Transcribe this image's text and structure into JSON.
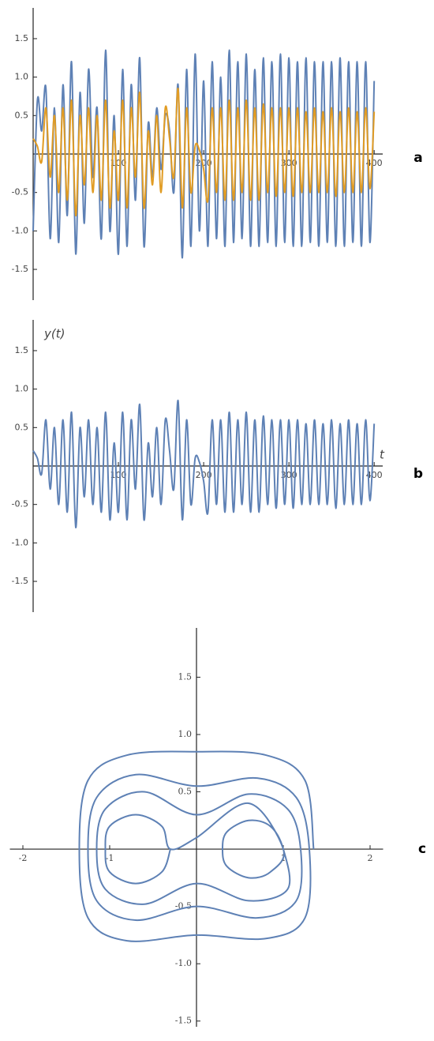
{
  "chart_data": [
    {
      "type": "line",
      "label": "a",
      "x": [
        0,
        5,
        10,
        15,
        20,
        25,
        30,
        35,
        40,
        45,
        50,
        55,
        60,
        65,
        70,
        75,
        80,
        85,
        90,
        95,
        100,
        105,
        110,
        115,
        120,
        125,
        130,
        135,
        140,
        145,
        150,
        155,
        160,
        165,
        170,
        175,
        180,
        185,
        190,
        195,
        200,
        205,
        210,
        215,
        220,
        225,
        230,
        235,
        240,
        245,
        250,
        255,
        260,
        265,
        270,
        275,
        280,
        285,
        290,
        295,
        300,
        305,
        310,
        315,
        320,
        325,
        330,
        335,
        340,
        345,
        350,
        355,
        360,
        365,
        370,
        375,
        380,
        385,
        390,
        395,
        400
      ],
      "series": [
        {
          "color": "#5e81b5",
          "values": [
            -1.0,
            0.7,
            0.3,
            0.85,
            -1.1,
            0.6,
            -1.15,
            0.9,
            -0.8,
            1.2,
            -1.3,
            0.8,
            -0.9,
            1.1,
            -0.3,
            0.6,
            -1.1,
            1.35,
            -1.0,
            0.5,
            -1.3,
            1.1,
            -1.2,
            0.9,
            -0.6,
            1.25,
            -1.2,
            0.4,
            -0.3,
            0.6,
            -0.2,
            0.5,
            0.3,
            -0.5,
            0.9,
            -1.35,
            1.1,
            -1.2,
            1.3,
            -1.0,
            0.95,
            -1.2,
            1.2,
            -1.1,
            1.0,
            -1.2,
            1.35,
            -1.15,
            1.2,
            -1.1,
            1.3,
            -1.2,
            1.1,
            -1.2,
            1.25,
            -1.15,
            1.2,
            -1.2,
            1.3,
            -1.15,
            1.25,
            -1.2,
            1.2,
            -1.2,
            1.25,
            -1.15,
            1.2,
            -1.2,
            1.2,
            -1.15,
            1.2,
            -1.2,
            1.25,
            -1.2,
            1.2,
            -1.15,
            1.2,
            -1.2,
            1.2,
            -1.15,
            0.95
          ]
        },
        {
          "color": "#e19c24",
          "values": [
            0.2,
            0.1,
            -0.1,
            0.6,
            -0.3,
            0.5,
            -0.5,
            0.6,
            -0.6,
            0.7,
            -0.8,
            0.5,
            -0.4,
            0.6,
            -0.5,
            0.5,
            -0.6,
            0.7,
            -0.7,
            0.3,
            -0.6,
            0.7,
            -0.7,
            0.6,
            -0.3,
            0.8,
            -0.7,
            0.3,
            -0.4,
            0.5,
            -0.5,
            0.6,
            0.2,
            -0.3,
            0.85,
            -0.7,
            0.6,
            -0.5,
            0.1,
            0.05,
            -0.2,
            -0.6,
            0.6,
            -0.5,
            0.6,
            -0.6,
            0.7,
            -0.6,
            0.6,
            -0.5,
            0.7,
            -0.6,
            0.6,
            -0.6,
            0.65,
            -0.5,
            0.6,
            -0.55,
            0.6,
            -0.5,
            0.6,
            -0.55,
            0.6,
            -0.5,
            0.55,
            -0.5,
            0.6,
            -0.5,
            0.55,
            -0.5,
            0.6,
            -0.55,
            0.55,
            -0.5,
            0.6,
            -0.5,
            0.55,
            -0.5,
            0.6,
            -0.45,
            0.55
          ]
        }
      ],
      "xlim": [
        0,
        410
      ],
      "ylim": [
        -1.9,
        1.9
      ],
      "xticks": [
        100,
        200,
        300,
        400
      ],
      "yticks": [
        -1.5,
        {
          "value": -1,
          "label": "-1.0"
        },
        -0.5,
        0.5,
        {
          "value": 1,
          "label": "1.0"
        },
        1.5
      ]
    },
    {
      "type": "line",
      "label": "b",
      "xlabel": "t",
      "ylabel": "y(t)",
      "x": [
        0,
        5,
        10,
        15,
        20,
        25,
        30,
        35,
        40,
        45,
        50,
        55,
        60,
        65,
        70,
        75,
        80,
        85,
        90,
        95,
        100,
        105,
        110,
        115,
        120,
        125,
        130,
        135,
        140,
        145,
        150,
        155,
        160,
        165,
        170,
        175,
        180,
        185,
        190,
        195,
        200,
        205,
        210,
        215,
        220,
        225,
        230,
        235,
        240,
        245,
        250,
        255,
        260,
        265,
        270,
        275,
        280,
        285,
        290,
        295,
        300,
        305,
        310,
        315,
        320,
        325,
        330,
        335,
        340,
        345,
        350,
        355,
        360,
        365,
        370,
        375,
        380,
        385,
        390,
        395,
        400
      ],
      "series": [
        {
          "color": "#5e81b5",
          "values": [
            0.2,
            0.1,
            -0.1,
            0.6,
            -0.3,
            0.5,
            -0.5,
            0.6,
            -0.6,
            0.7,
            -0.8,
            0.5,
            -0.4,
            0.6,
            -0.5,
            0.5,
            -0.6,
            0.7,
            -0.7,
            0.3,
            -0.6,
            0.7,
            -0.7,
            0.6,
            -0.3,
            0.8,
            -0.7,
            0.3,
            -0.4,
            0.5,
            -0.5,
            0.6,
            0.2,
            -0.3,
            0.85,
            -0.7,
            0.6,
            -0.5,
            0.1,
            0.05,
            -0.2,
            -0.6,
            0.6,
            -0.5,
            0.6,
            -0.6,
            0.7,
            -0.6,
            0.6,
            -0.5,
            0.7,
            -0.6,
            0.6,
            -0.6,
            0.65,
            -0.5,
            0.6,
            -0.55,
            0.6,
            -0.5,
            0.6,
            -0.55,
            0.6,
            -0.5,
            0.55,
            -0.5,
            0.6,
            -0.5,
            0.55,
            -0.5,
            0.6,
            -0.55,
            0.55,
            -0.5,
            0.6,
            -0.5,
            0.55,
            -0.5,
            0.6,
            -0.45,
            0.55
          ]
        }
      ],
      "xlim": [
        0,
        410
      ],
      "ylim": [
        -1.9,
        1.9
      ],
      "xticks": [
        100,
        200,
        300,
        400
      ],
      "yticks": [
        -1.5,
        {
          "value": -1,
          "label": "-1.0"
        },
        -0.5,
        0.5,
        {
          "value": 1,
          "label": "1.0"
        },
        1.5
      ]
    },
    {
      "type": "line",
      "label": "c",
      "x": [
        1.35,
        1.25,
        0.8,
        0,
        -0.8,
        -1.25,
        -1.35,
        -1.25,
        -0.8,
        0,
        0.8,
        1.25,
        1.3,
        1.15,
        0.7,
        0,
        -0.7,
        -1.15,
        -1.25,
        -1.15,
        -0.7,
        0,
        0.7,
        1.15,
        1.2,
        1.05,
        0.6,
        0,
        -0.6,
        -1.05,
        -1.15,
        -1.05,
        -0.6,
        0,
        0.6,
        1.05,
        1.0,
        0.85,
        0.6,
        0.35,
        0.3,
        0.35,
        0.6,
        0.85,
        1.0,
        0.6,
        0,
        -0.3,
        -0.4,
        -0.7,
        -1.0,
        -1.05,
        -1.0,
        -0.7,
        -0.4,
        -0.3
      ],
      "series": [
        {
          "color": "#5e81b5",
          "values": [
            0,
            0.6,
            0.82,
            0.85,
            0.82,
            0.6,
            0,
            -0.6,
            -0.8,
            -0.75,
            -0.78,
            -0.6,
            0,
            0.45,
            0.62,
            0.55,
            0.65,
            0.45,
            0,
            -0.45,
            -0.62,
            -0.5,
            -0.6,
            -0.45,
            0,
            0.35,
            0.48,
            0.3,
            0.5,
            0.35,
            0,
            -0.35,
            -0.48,
            -0.3,
            -0.45,
            -0.35,
            0,
            0.2,
            0.25,
            0.15,
            0,
            -0.15,
            -0.25,
            -0.2,
            0,
            0.4,
            0.1,
            0,
            0.2,
            0.3,
            0.2,
            0,
            -0.2,
            -0.3,
            -0.2,
            0
          ]
        }
      ],
      "xlim": [
        -2.15,
        2.15
      ],
      "ylim": [
        -1.55,
        1.93
      ],
      "xticks": [
        -2,
        -1,
        1,
        2
      ],
      "yticks": [
        -1.5,
        {
          "value": -1,
          "label": "-1.0"
        },
        -0.5,
        0.5,
        {
          "value": 1,
          "label": "1.0"
        },
        1.5
      ]
    }
  ]
}
